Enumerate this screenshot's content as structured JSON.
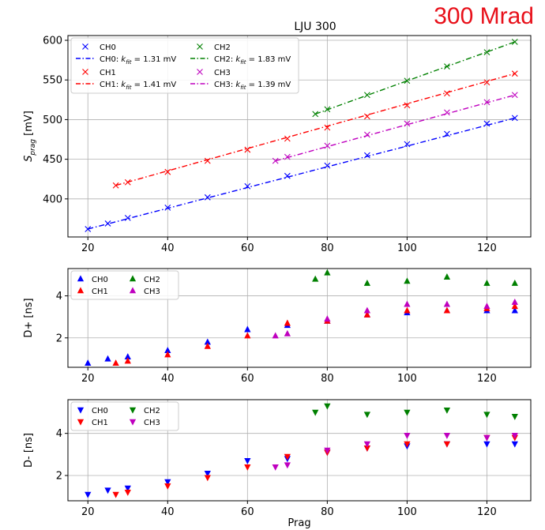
{
  "corner_label": "300 Mrad",
  "colors": {
    "CH0": "#0000ff",
    "CH1": "#ff0000",
    "CH2": "#008000",
    "CH3": "#bf00bf"
  },
  "chart_data": [
    {
      "type": "scatter",
      "title": "LJU 300",
      "xlabel": "",
      "ylabel": "S_prag [mV]",
      "xlim": [
        15,
        131
      ],
      "ylim": [
        352,
        606
      ],
      "xticks": [
        20,
        40,
        60,
        80,
        100,
        120
      ],
      "yticks": [
        400,
        450,
        500,
        550,
        600
      ],
      "grid": true,
      "legend_position": "top-left",
      "marker": "x",
      "series": [
        {
          "name": "CH0",
          "color": "#0000ff",
          "x": [
            20,
            25,
            30,
            40,
            50,
            60,
            70,
            80,
            90,
            100,
            110,
            120,
            127
          ],
          "y": [
            362,
            369,
            376,
            389,
            402,
            416,
            429,
            442,
            455,
            469,
            482,
            495,
            502
          ]
        },
        {
          "name": "CH1",
          "color": "#ff0000",
          "x": [
            27,
            30,
            40,
            50,
            60,
            70,
            80,
            90,
            100,
            110,
            120,
            127
          ],
          "y": [
            417,
            421,
            434,
            448,
            462,
            476,
            490,
            504,
            518,
            533,
            547,
            558
          ]
        },
        {
          "name": "CH2",
          "color": "#008000",
          "x": [
            77,
            80,
            90,
            100,
            110,
            120,
            127
          ],
          "y": [
            507,
            513,
            531,
            549,
            567,
            585,
            598
          ]
        },
        {
          "name": "CH3",
          "color": "#bf00bf",
          "x": [
            67,
            70,
            80,
            90,
            100,
            110,
            120,
            127
          ],
          "y": [
            448,
            453,
            467,
            481,
            495,
            509,
            522,
            531
          ]
        }
      ],
      "fits": [
        {
          "name": "CH0: k_fit = 1.31 mV",
          "label_prefix": "CH0: ",
          "k_symbol": "k",
          "k_sub": "fit",
          "label_value": " = 1.31 mV",
          "color": "#0000ff",
          "x": [
            20,
            127
          ],
          "y": [
            362,
            502
          ]
        },
        {
          "name": "CH1: k_fit = 1.41 mV",
          "label_prefix": "CH1: ",
          "k_symbol": "k",
          "k_sub": "fit",
          "label_value": " = 1.41 mV",
          "color": "#ff0000",
          "x": [
            27,
            127
          ],
          "y": [
            417,
            558
          ]
        },
        {
          "name": "CH2: k_fit = 1.83 mV",
          "label_prefix": "CH2: ",
          "k_symbol": "k",
          "k_sub": "fit",
          "label_value": " = 1.83 mV",
          "color": "#008000",
          "x": [
            77,
            127
          ],
          "y": [
            507,
            598
          ]
        },
        {
          "name": "CH3: k_fit = 1.39 mV",
          "label_prefix": "CH3: ",
          "k_symbol": "k",
          "k_sub": "fit",
          "label_value": " = 1.39 mV",
          "color": "#bf00bf",
          "x": [
            67,
            127
          ],
          "y": [
            448,
            531
          ]
        }
      ]
    },
    {
      "type": "scatter",
      "title": "",
      "xlabel": "",
      "ylabel": "D+ [ns]",
      "xlim": [
        15,
        131
      ],
      "ylim": [
        0.6,
        5.3
      ],
      "xticks": [
        20,
        40,
        60,
        80,
        100,
        120
      ],
      "yticks": [
        2,
        4
      ],
      "grid": true,
      "legend_position": "top-left",
      "marker": "triangle-up",
      "series": [
        {
          "name": "CH0",
          "color": "#0000ff",
          "x": [
            20,
            25,
            30,
            40,
            50,
            60,
            70,
            80,
            90,
            100,
            110,
            120,
            127
          ],
          "y": [
            0.8,
            1.0,
            1.1,
            1.4,
            1.8,
            2.4,
            2.6,
            2.8,
            3.1,
            3.2,
            3.3,
            3.3,
            3.3
          ]
        },
        {
          "name": "CH1",
          "color": "#ff0000",
          "x": [
            27,
            30,
            40,
            50,
            60,
            70,
            80,
            90,
            100,
            110,
            120,
            127
          ],
          "y": [
            0.8,
            0.9,
            1.2,
            1.6,
            2.1,
            2.7,
            2.8,
            3.1,
            3.3,
            3.3,
            3.4,
            3.5
          ]
        },
        {
          "name": "CH2",
          "color": "#008000",
          "x": [
            77,
            80,
            90,
            100,
            110,
            120,
            127
          ],
          "y": [
            4.8,
            5.1,
            4.6,
            4.7,
            4.9,
            4.6,
            4.6
          ]
        },
        {
          "name": "CH3",
          "color": "#bf00bf",
          "x": [
            67,
            70,
            80,
            90,
            100,
            110,
            120,
            127
          ],
          "y": [
            2.1,
            2.2,
            2.9,
            3.3,
            3.6,
            3.6,
            3.5,
            3.7
          ]
        }
      ]
    },
    {
      "type": "scatter",
      "title": "",
      "xlabel": "Prag",
      "ylabel": "D- [ns]",
      "xlim": [
        15,
        131
      ],
      "ylim": [
        0.8,
        5.6
      ],
      "xticks": [
        20,
        40,
        60,
        80,
        100,
        120
      ],
      "yticks": [
        2,
        4
      ],
      "grid": true,
      "legend_position": "top-left",
      "marker": "triangle-down",
      "series": [
        {
          "name": "CH0",
          "color": "#0000ff",
          "x": [
            20,
            25,
            30,
            40,
            50,
            60,
            70,
            80,
            90,
            100,
            110,
            120,
            127
          ],
          "y": [
            1.1,
            1.3,
            1.4,
            1.7,
            2.1,
            2.7,
            2.8,
            3.1,
            3.3,
            3.4,
            3.5,
            3.5,
            3.5
          ]
        },
        {
          "name": "CH1",
          "color": "#ff0000",
          "x": [
            27,
            30,
            40,
            50,
            60,
            70,
            80,
            90,
            100,
            110,
            120,
            127
          ],
          "y": [
            1.1,
            1.2,
            1.5,
            1.9,
            2.4,
            2.9,
            3.1,
            3.3,
            3.5,
            3.5,
            3.8,
            3.8
          ]
        },
        {
          "name": "CH2",
          "color": "#008000",
          "x": [
            77,
            80,
            90,
            100,
            110,
            120,
            127
          ],
          "y": [
            5.0,
            5.3,
            4.9,
            5.0,
            5.1,
            4.9,
            4.8
          ]
        },
        {
          "name": "CH3",
          "color": "#bf00bf",
          "x": [
            67,
            70,
            80,
            90,
            100,
            110,
            120,
            127
          ],
          "y": [
            2.4,
            2.5,
            3.2,
            3.5,
            3.9,
            3.9,
            3.8,
            3.9
          ]
        }
      ]
    }
  ]
}
